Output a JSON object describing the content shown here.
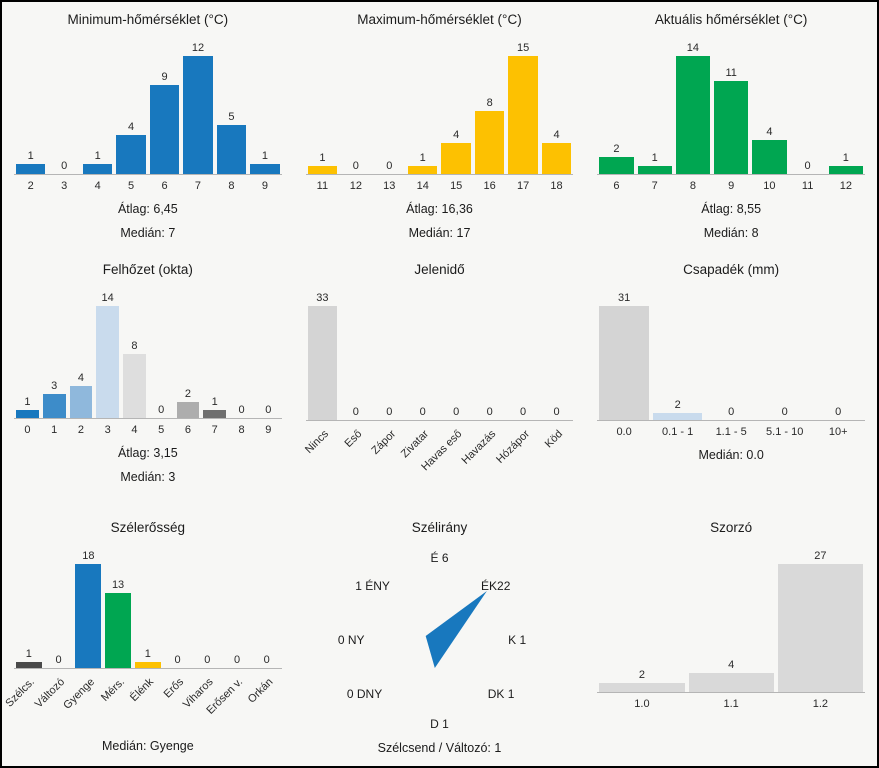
{
  "chart_data": [
    {
      "key": "min_temp",
      "type": "bar",
      "title": "Minimum-hőmérséklet (°C)",
      "color": "#1878be",
      "categories": [
        "2",
        "3",
        "4",
        "5",
        "6",
        "7",
        "8",
        "9"
      ],
      "values": [
        1,
        0,
        1,
        4,
        9,
        12,
        5,
        1
      ],
      "stats": [
        "Átlag: 6,45",
        "Medián: 7"
      ],
      "ylim": [
        0,
        12
      ]
    },
    {
      "key": "max_temp",
      "type": "bar",
      "title": "Maximum-hőmérséklet (°C)",
      "color": "#fdc101",
      "categories": [
        "11",
        "12",
        "13",
        "14",
        "15",
        "16",
        "17",
        "18"
      ],
      "values": [
        1,
        0,
        0,
        1,
        4,
        8,
        15,
        4
      ],
      "stats": [
        "Átlag: 16,36",
        "Medián: 17"
      ],
      "ylim": [
        0,
        15
      ]
    },
    {
      "key": "akt_temp",
      "type": "bar",
      "title": "Aktuális hőmérséklet (°C)",
      "color": "#00a651",
      "categories": [
        "6",
        "7",
        "8",
        "9",
        "10",
        "11",
        "12"
      ],
      "values": [
        2,
        1,
        14,
        11,
        4,
        0,
        1
      ],
      "stats": [
        "Átlag: 8,55",
        "Medián: 8"
      ],
      "ylim": [
        0,
        14
      ]
    },
    {
      "key": "felhozet",
      "type": "bar",
      "title": "Felhőzet (okta)",
      "categories": [
        "0",
        "1",
        "2",
        "3",
        "4",
        "5",
        "6",
        "7",
        "8",
        "9"
      ],
      "values": [
        1,
        3,
        4,
        14,
        8,
        0,
        2,
        1,
        0,
        0
      ],
      "colors": [
        "#1878be",
        "#3d8cc9",
        "#8fb8dc",
        "#c9dbed",
        "#dedede",
        "#d4d4d4",
        "#adadad",
        "#6f6f6f",
        "#999999",
        "#8c8c8c"
      ],
      "stats": [
        "Átlag: 3,15",
        "Medián: 3"
      ],
      "ylim": [
        0,
        14
      ]
    },
    {
      "key": "jelenido",
      "type": "bar",
      "title": "Jelenidő",
      "color": "#d4d4d4",
      "categories": [
        "Nincs",
        "Eső",
        "Zápor",
        "Zivatar",
        "Havas eső",
        "Havazás",
        "Hózápor",
        "Köd"
      ],
      "values": [
        33,
        0,
        0,
        0,
        0,
        0,
        0,
        0
      ],
      "rotate_labels": true,
      "stats": [],
      "ylim": [
        0,
        33
      ]
    },
    {
      "key": "csapadek",
      "type": "bar",
      "title": "Csapadék (mm)",
      "categories": [
        "0.0",
        "0.1 - 1",
        "1.1 - 5",
        "5.1 - 10",
        "10+"
      ],
      "values": [
        31,
        2,
        0,
        0,
        0
      ],
      "colors": [
        "#d4d4d4",
        "#c9dbed",
        "#d4d4d4",
        "#d4d4d4",
        "#d4d4d4"
      ],
      "stats": [
        "Medián: 0.0"
      ],
      "ylim": [
        0,
        31
      ]
    },
    {
      "key": "szelerosseg",
      "type": "bar",
      "title": "Szélerősség",
      "categories": [
        "Szélcs.",
        "Változó",
        "Gyenge",
        "Mérs.",
        "Élénk",
        "Erős",
        "Viharos",
        "Erősen v.",
        "Orkán"
      ],
      "values": [
        1,
        0,
        18,
        13,
        1,
        0,
        0,
        0,
        0
      ],
      "colors": [
        "#4a4a4a",
        "#d4d4d4",
        "#1878be",
        "#00a651",
        "#fdc101",
        "#d4d4d4",
        "#d4d4d4",
        "#d4d4d4",
        "#d4d4d4"
      ],
      "rotate_labels": true,
      "stats": [
        "Medián: Gyenge"
      ],
      "ylim": [
        0,
        18
      ]
    },
    {
      "key": "szelirany",
      "type": "wind-rose",
      "title": "Szélirány",
      "directions": [
        "É",
        "ÉK",
        "K",
        "DK",
        "D",
        "DNY",
        "NY",
        "ÉNY"
      ],
      "values": [
        6,
        22,
        1,
        1,
        1,
        0,
        0,
        1
      ],
      "display_labels": {
        "n": "É 6",
        "ne": "ÉK22",
        "e": "K 1",
        "se": "DK 1",
        "s": "D 1",
        "sw": "0 DNY",
        "w": "0 NY",
        "nw": "1 ÉNY"
      },
      "footer": "Szélcsend / Változó: 1",
      "arrow_color": "#1878be"
    },
    {
      "key": "szorzo",
      "type": "bar",
      "title": "Szorzó",
      "color": "#d9d9d9",
      "categories": [
        "1.0",
        "1.1",
        "1.2"
      ],
      "values": [
        2,
        4,
        27
      ],
      "stats": [],
      "ylim": [
        0,
        27
      ]
    }
  ]
}
